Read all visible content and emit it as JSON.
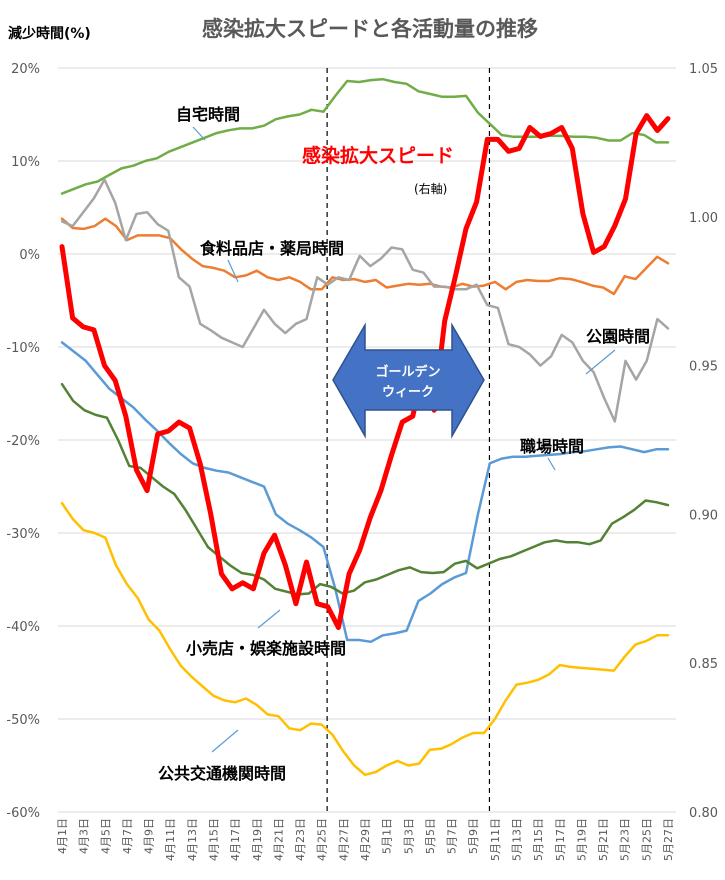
{
  "chart_data": {
    "type": "line",
    "title": "感染拡大スピードと各活動量の推移",
    "ylabel_left": "減少時間(%)",
    "y_left_range": [
      -60,
      20
    ],
    "y_left_ticks": [
      "20%",
      "10%",
      "0%",
      "-10%",
      "-20%",
      "-30%",
      "-40%",
      "-50%",
      "-60%"
    ],
    "y_right_range": [
      0.8,
      1.05
    ],
    "y_right_ticks": [
      "1.05",
      "1.00",
      "0.95",
      "0.90",
      "0.85",
      "0.80"
    ],
    "x_labels": [
      "4月1日",
      "4月3日",
      "4月5日",
      "4月7日",
      "4月9日",
      "4月11日",
      "4月13日",
      "4月15日",
      "4月17日",
      "4月19日",
      "4月21日",
      "4月23日",
      "4月25日",
      "4月27日",
      "4月29日",
      "5月1日",
      "5月3日",
      "5月5日",
      "5月7日",
      "5月9日",
      "5月11日",
      "5月13日",
      "5月15日",
      "5月17日",
      "5月19日",
      "5月21日",
      "5月23日",
      "5月25日",
      "5月27日"
    ],
    "dashed_lines_at_day": [
      24.5,
      39.5
    ],
    "series": [
      {
        "name": "自宅時間",
        "axis": "left",
        "color": "#70ad47",
        "values": [
          6.5,
          7,
          7.5,
          7.8,
          8.5,
          9.2,
          9.5,
          10,
          10.3,
          11,
          11.5,
          12,
          12.5,
          13,
          13.3,
          13.5,
          13.5,
          13.8,
          14.5,
          14.8,
          15,
          15.5,
          15.3,
          17,
          18.6,
          18.5,
          18.7,
          18.8,
          18.5,
          18.3,
          17.5,
          17.2,
          16.9,
          16.9,
          17,
          15.2,
          14,
          12.8,
          12.6,
          12.6,
          12.6,
          12.7,
          12.7,
          12.6,
          12.6,
          12.5,
          12.2,
          12.2,
          13,
          12.8,
          12,
          12
        ]
      },
      {
        "name": "食料品店・薬局時間",
        "axis": "left",
        "color": "#ed7d31",
        "values": [
          3.8,
          2.8,
          2.7,
          3,
          3.8,
          3,
          1.5,
          2,
          2,
          2,
          1.7,
          0.5,
          -0.5,
          -1.3,
          -1.5,
          -1.8,
          -2.5,
          -2.3,
          -1.8,
          -2.5,
          -2.8,
          -2.5,
          -3,
          -3.8,
          -3.8,
          -2.5,
          -2.8,
          -2.7,
          -3,
          -2.8,
          -3.6,
          -3.4,
          -3.2,
          -3.3,
          -3.2,
          -3.5,
          -3.6,
          -3.2,
          -3.5,
          -3.4,
          -3,
          -3.8,
          -3,
          -2.8,
          -2.9,
          -2.9,
          -2.6,
          -2.7,
          -3,
          -3.4,
          -3.6,
          -4.3,
          -2.4,
          -2.7,
          -1.5,
          -0.3,
          -1
        ]
      },
      {
        "name": "公園時間",
        "axis": "left",
        "color": "#a5a5a5",
        "values": [
          3.5,
          3,
          4.5,
          6,
          8,
          5.5,
          1.5,
          4.3,
          4.5,
          3.2,
          2.5,
          -2.5,
          -3.5,
          -7.5,
          -8.2,
          -9,
          -9.5,
          -10,
          -8,
          -6,
          -7.5,
          -8.5,
          -7.5,
          -7,
          -2.5,
          -3.3,
          -2.5,
          -2.8,
          -0.2,
          -1.3,
          -0.5,
          0.7,
          0.5,
          -1.7,
          -2,
          -3.5,
          -3.5,
          -3.8,
          -3.8,
          -3.3,
          -5.5,
          -5.8,
          -9.7,
          -10,
          -10.8,
          -12,
          -11,
          -8.7,
          -9.5,
          -11.5,
          -12.7,
          -15.5,
          -18,
          -11.5,
          -13.5,
          -11.5,
          -7,
          -8
        ]
      },
      {
        "name": "職場時間",
        "axis": "left",
        "color": "#5b9bd5",
        "values": [
          -9.5,
          -10.5,
          -11.5,
          -13,
          -14.5,
          -15.5,
          -16.5,
          -17.8,
          -19,
          -20.3,
          -21.5,
          -22.5,
          -23,
          -23.3,
          -23.5,
          -24,
          -24.5,
          -25,
          -28,
          -29,
          -29.7,
          -30.5,
          -31.5,
          -36,
          -41.5,
          -41.5,
          -41.7,
          -41,
          -40.8,
          -40.5,
          -37.3,
          -36.5,
          -35.5,
          -34.8,
          -34.3,
          -28,
          -22.5,
          -22,
          -21.8,
          -21.8,
          -21.7,
          -21.6,
          -21.5,
          -21.3,
          -21.2,
          -21,
          -20.8,
          -20.7,
          -21,
          -21.3,
          -21,
          -21
        ]
      },
      {
        "name": "小売店・娯楽施設時間",
        "axis": "left",
        "color": "#548235",
        "values": [
          -14,
          -15.8,
          -16.8,
          -17.3,
          -17.6,
          -20,
          -22.8,
          -23,
          -24,
          -25,
          -25.8,
          -27.5,
          -29.5,
          -31.5,
          -32.5,
          -33.5,
          -34.3,
          -34.5,
          -35,
          -36,
          -36.3,
          -36.6,
          -36.5,
          -35.5,
          -35.8,
          -36.5,
          -36.2,
          -35.3,
          -35,
          -34.5,
          -34,
          -33.7,
          -34.2,
          -34.3,
          -34.2,
          -33.3,
          -33,
          -33.8,
          -33.3,
          -32.8,
          -32.5,
          -32,
          -31.5,
          -31,
          -30.8,
          -31,
          -31,
          -31.2,
          -30.8,
          -29,
          -28.3,
          -27.5,
          -26.5,
          -26.7,
          -27
        ]
      },
      {
        "name": "公共交通機関時間",
        "axis": "left",
        "color": "#ffc000",
        "values": [
          -26.8,
          -28.5,
          -29.7,
          -30,
          -30.5,
          -33.5,
          -35.5,
          -37,
          -39.3,
          -40.5,
          -42.5,
          -44.3,
          -45.5,
          -46.5,
          -47.5,
          -48,
          -48.2,
          -47.8,
          -48.5,
          -49.5,
          -49.7,
          -51,
          -51.2,
          -50.5,
          -50.6,
          -51.7,
          -53.5,
          -55,
          -56,
          -55.7,
          -55,
          -54.5,
          -55,
          -54.8,
          -53.3,
          -53.2,
          -52.7,
          -52,
          -51.5,
          -51.5,
          -50,
          -48,
          -46.3,
          -46.1,
          -45.8,
          -45.2,
          -44.2,
          -44.4,
          -44.5,
          -44.6,
          -44.7,
          -44.8,
          -43.3,
          -42,
          -41.6,
          -41,
          -41
        ]
      },
      {
        "name": "感染拡大スピード",
        "axis": "right",
        "color": "#ff0000",
        "note": "(右軸)",
        "values": [
          0.99,
          0.966,
          0.963,
          0.962,
          0.95,
          0.945,
          0.933,
          0.915,
          0.908,
          0.927,
          0.928,
          0.931,
          0.929,
          0.917,
          0.9,
          0.88,
          0.875,
          0.877,
          0.875,
          0.887,
          0.893,
          0.883,
          0.87,
          0.884,
          0.87,
          0.869,
          0.862,
          0.88,
          0.888,
          0.899,
          0.908,
          0.92,
          0.931,
          0.933,
          0.95,
          0.935,
          0.965,
          0.98,
          0.996,
          1.005,
          1.026,
          1.026,
          1.022,
          1.023,
          1.03,
          1.027,
          1.028,
          1.03,
          1.023,
          1.001,
          0.988,
          0.99,
          0.997,
          1.006,
          1.028,
          1.034,
          1.029,
          1.033
        ]
      }
    ]
  },
  "labels": {
    "home": "自宅時間",
    "food": "食料品店・薬局時間",
    "park": "公園時間",
    "work": "職場時間",
    "retail": "小売店・娯楽施設時間",
    "transit": "公共交通機関時間",
    "infection": "感染拡大スピード",
    "right_axis_note": "(右軸)",
    "golden_week": "ゴールデン\nウィーク"
  },
  "colors": {
    "arrow": "#4472c4",
    "dashed": "#000000"
  }
}
